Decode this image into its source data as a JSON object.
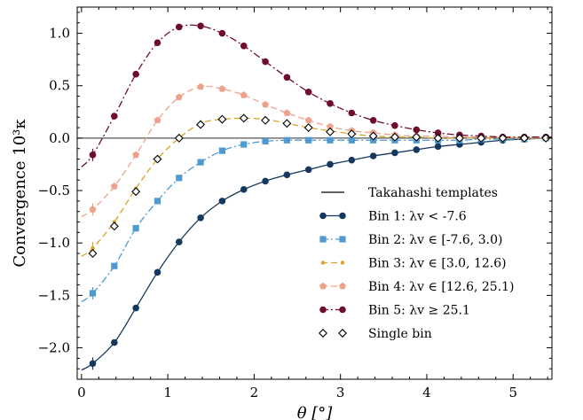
{
  "chart_data": {
    "type": "line",
    "xlabel": "θ [°]",
    "ylabel": "Convergence 10³κ",
    "xlim": [
      -0.05,
      5.45
    ],
    "ylim": [
      -2.3,
      1.25
    ],
    "xticks": [
      0,
      1,
      2,
      3,
      4,
      5
    ],
    "xtick_labels": [
      "0",
      "1",
      "2",
      "3",
      "4",
      "5"
    ],
    "yticks": [
      1.0,
      0.5,
      0.0,
      -0.5,
      -1.0,
      -1.5,
      -2.0
    ],
    "ytick_labels": [
      "1.0",
      "0.5",
      "0.0",
      "−0.5",
      "−1.0",
      "−1.5",
      "−2.0"
    ],
    "reference_line_y": 0,
    "legend_position": "lower-right",
    "x": [
      0.13,
      0.38,
      0.63,
      0.88,
      1.13,
      1.38,
      1.63,
      1.88,
      2.13,
      2.38,
      2.63,
      2.88,
      3.13,
      3.38,
      3.63,
      3.88,
      4.13,
      4.38,
      4.63,
      4.88,
      5.13,
      5.38
    ],
    "templates_label": "Takahashi templates",
    "series": [
      {
        "name": "Bin 1: λv < -7.6",
        "color": "#15385f",
        "style": "solid",
        "marker": "circle",
        "values": [
          -2.15,
          -1.95,
          -1.62,
          -1.28,
          -0.99,
          -0.76,
          -0.6,
          -0.49,
          -0.41,
          -0.35,
          -0.3,
          -0.25,
          -0.21,
          -0.17,
          -0.14,
          -0.11,
          -0.08,
          -0.06,
          -0.04,
          -0.02,
          -0.01,
          0.0
        ]
      },
      {
        "name": "Bin 2: λv ∈ [-7.6, 3.0)",
        "color": "#4f9ad0",
        "style": "dashdot",
        "marker": "square",
        "values": [
          -1.48,
          -1.22,
          -0.86,
          -0.6,
          -0.38,
          -0.23,
          -0.12,
          -0.06,
          -0.03,
          -0.02,
          -0.02,
          -0.02,
          -0.02,
          -0.02,
          -0.02,
          -0.02,
          -0.02,
          -0.02,
          -0.01,
          -0.01,
          -0.01,
          0.0
        ]
      },
      {
        "name": "Bin 3: λv ∈ [3.0, 12.6)",
        "color": "#d9a427",
        "style": "dashed",
        "marker": "small-circle",
        "values": [
          -1.05,
          -0.8,
          -0.48,
          -0.2,
          0.0,
          0.14,
          0.18,
          0.19,
          0.18,
          0.14,
          0.1,
          0.07,
          0.04,
          0.02,
          0.01,
          0.01,
          0.0,
          0.0,
          0.0,
          0.0,
          0.0,
          0.0
        ]
      },
      {
        "name": "Bin 4: λv ∈ [12.6, 25.1)",
        "color": "#eea28c",
        "style": "dashed",
        "marker": "pentagon",
        "values": [
          -0.68,
          -0.46,
          -0.16,
          0.17,
          0.39,
          0.49,
          0.47,
          0.41,
          0.32,
          0.24,
          0.17,
          0.11,
          0.07,
          0.05,
          0.03,
          0.02,
          0.02,
          0.01,
          0.01,
          0.01,
          0.0,
          0.0
        ]
      },
      {
        "name": "Bin 5: λv ≥ 25.1",
        "color": "#6e0c2a",
        "style": "dashdot",
        "marker": "circle",
        "values": [
          -0.16,
          0.21,
          0.61,
          0.91,
          1.06,
          1.07,
          1.0,
          0.88,
          0.73,
          0.58,
          0.44,
          0.33,
          0.24,
          0.17,
          0.12,
          0.08,
          0.05,
          0.03,
          0.02,
          0.01,
          0.01,
          0.01
        ]
      },
      {
        "name": "Single bin",
        "color": "#000000",
        "style": "none",
        "marker": "diamond-open",
        "values": [
          -1.1,
          -0.84,
          -0.51,
          -0.2,
          0.0,
          0.13,
          0.18,
          0.19,
          0.17,
          0.14,
          0.1,
          0.06,
          0.04,
          0.02,
          0.01,
          0.01,
          0.0,
          0.0,
          0.0,
          0.0,
          0.0,
          0.0
        ]
      }
    ]
  }
}
